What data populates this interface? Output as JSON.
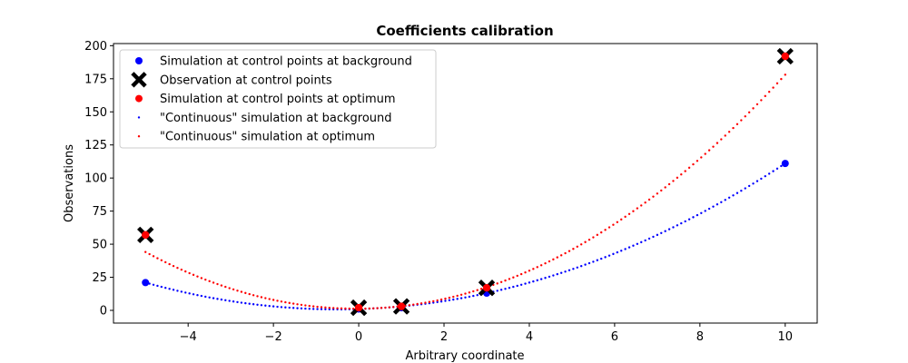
{
  "chart_data": {
    "type": "scatter",
    "title": "Coefficients calibration",
    "xlabel": "Arbitrary coordinate",
    "ylabel": "Observations",
    "xlim": [
      -5.75,
      10.75
    ],
    "ylim": [
      -9.6,
      201.6
    ],
    "xticks": [
      -4,
      -2,
      0,
      2,
      4,
      6,
      8,
      10
    ],
    "yticks": [
      0,
      25,
      50,
      75,
      100,
      125,
      150,
      175,
      200
    ],
    "grid": false,
    "legend_position": "top-left",
    "series": [
      {
        "name": "Simulation at control points at background",
        "kind": "marker",
        "marker": "circle",
        "color": "#0000ff",
        "x": [
          -5,
          0,
          1,
          3,
          10
        ],
        "y": [
          21,
          1,
          2,
          13,
          111
        ]
      },
      {
        "name": "Observation at control points",
        "kind": "marker",
        "marker": "x-thick",
        "color": "#000000",
        "x": [
          -5,
          0,
          1,
          3,
          10
        ],
        "y": [
          57,
          2,
          3,
          17,
          192
        ]
      },
      {
        "name": "Simulation at control points at optimum",
        "kind": "marker",
        "marker": "circle",
        "color": "#ff0000",
        "x": [
          -5,
          0,
          1,
          3,
          10
        ],
        "y": [
          57,
          2,
          3,
          17,
          192
        ]
      },
      {
        "name": "\"Continuous\" simulation at background",
        "kind": "dotted-curve",
        "color": "#0000ff",
        "x_range": [
          -5,
          10
        ],
        "coefficients": {
          "a": 1.0,
          "b": 1.0,
          "c": 1.0
        }
      },
      {
        "name": "\"Continuous\" simulation at optimum",
        "kind": "dotted-curve",
        "color": "#ff0000",
        "x_range": [
          -5,
          10
        ],
        "coefficients": {
          "a": 1.75,
          "b": 0.18,
          "c": 1.25
        }
      }
    ]
  }
}
